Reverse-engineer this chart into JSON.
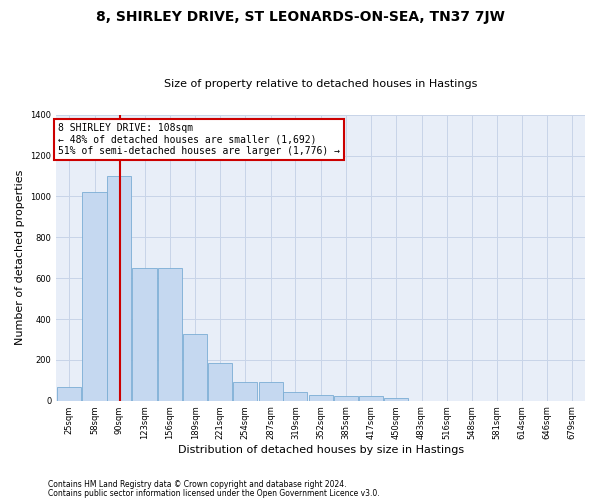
{
  "title": "8, SHIRLEY DRIVE, ST LEONARDS-ON-SEA, TN37 7JW",
  "subtitle": "Size of property relative to detached houses in Hastings",
  "xlabel": "Distribution of detached houses by size in Hastings",
  "ylabel": "Number of detached properties",
  "footnote1": "Contains HM Land Registry data © Crown copyright and database right 2024.",
  "footnote2": "Contains public sector information licensed under the Open Government Licence v3.0.",
  "annotation_line1": "8 SHIRLEY DRIVE: 108sqm",
  "annotation_line2": "← 48% of detached houses are smaller (1,692)",
  "annotation_line3": "51% of semi-detached houses are larger (1,776) →",
  "property_size": 108,
  "bar_color": "#c5d8f0",
  "bar_edge_color": "#7badd4",
  "vline_color": "#cc0000",
  "annotation_box_color": "#cc0000",
  "grid_color": "#c8d4e8",
  "bg_color": "#e8eef8",
  "categories": [
    "25sqm",
    "58sqm",
    "90sqm",
    "123sqm",
    "156sqm",
    "189sqm",
    "221sqm",
    "254sqm",
    "287sqm",
    "319sqm",
    "352sqm",
    "385sqm",
    "417sqm",
    "450sqm",
    "483sqm",
    "516sqm",
    "548sqm",
    "581sqm",
    "614sqm",
    "646sqm",
    "679sqm"
  ],
  "values": [
    65,
    1020,
    1100,
    650,
    650,
    325,
    185,
    90,
    90,
    45,
    30,
    25,
    25,
    15,
    0,
    0,
    0,
    0,
    0,
    0,
    0
  ],
  "bin_edges": [
    25,
    58,
    90,
    123,
    156,
    189,
    221,
    254,
    287,
    319,
    352,
    385,
    417,
    450,
    483,
    516,
    548,
    581,
    614,
    646,
    679
  ],
  "bin_width": 33,
  "ylim": [
    0,
    1400
  ],
  "yticks": [
    0,
    200,
    400,
    600,
    800,
    1000,
    1200,
    1400
  ],
  "title_fontsize": 10,
  "subtitle_fontsize": 8,
  "ylabel_fontsize": 8,
  "xlabel_fontsize": 8,
  "tick_fontsize": 6,
  "annotation_fontsize": 7,
  "footnote_fontsize": 5.5
}
